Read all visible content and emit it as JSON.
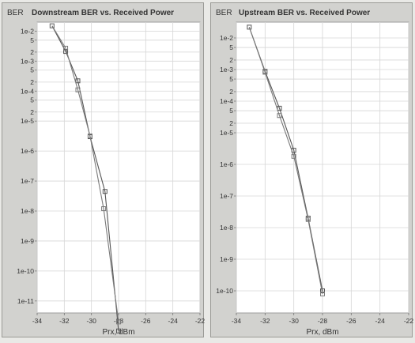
{
  "chart_data": [
    {
      "type": "line",
      "title": "Downstream BER vs. Received Power",
      "ylabel": "BER",
      "xlabel": "Prx, dBm",
      "xlim": [
        -34,
        -22
      ],
      "x_ticks": [
        -34,
        -32,
        -30,
        -28,
        -26,
        -24,
        -22
      ],
      "x_tick_labels": [
        "-34",
        "-32",
        "-30",
        "-28",
        "-26",
        "-24",
        "-22"
      ],
      "yscale": "log",
      "ylim_exp": [
        -11.4,
        -1.7
      ],
      "y_ticks": [
        {
          "label": "1e-2",
          "exp": -2
        },
        {
          "label": "5",
          "exp": -2.301
        },
        {
          "label": "2",
          "exp": -2.699
        },
        {
          "label": "1e-3",
          "exp": -3
        },
        {
          "label": "5",
          "exp": -3.301
        },
        {
          "label": "2",
          "exp": -3.699
        },
        {
          "label": "1e-4",
          "exp": -4
        },
        {
          "label": "5",
          "exp": -4.301
        },
        {
          "label": "2",
          "exp": -4.699
        },
        {
          "label": "1e-5",
          "exp": -5
        },
        {
          "label": "1e-6",
          "exp": -6
        },
        {
          "label": "1e-7",
          "exp": -7
        },
        {
          "label": "1e-8",
          "exp": -8
        },
        {
          "label": "1e-9",
          "exp": -9
        },
        {
          "label": "1e-10",
          "exp": -10
        },
        {
          "label": "1e-11",
          "exp": -11
        }
      ],
      "grid": true,
      "series": [
        {
          "x": [
            -32.9,
            -31.9,
            -31.0,
            -30.1,
            -29.0,
            -28.0
          ],
          "y": [
            0.015,
            0.0021,
            0.00022,
            3e-06,
            4.5e-08,
            1e-12
          ]
        },
        {
          "x": [
            -32.9,
            -31.9,
            -31.0,
            -30.1,
            -29.1,
            -28.0
          ],
          "y": [
            0.015,
            0.0027,
            0.00011,
            3.2e-06,
            1.2e-08,
            2e-12
          ]
        }
      ]
    },
    {
      "type": "line",
      "title": "Upstream BER vs. Received Power",
      "ylabel": "BER",
      "xlabel": "Prx, dBm",
      "xlim": [
        -34,
        -22
      ],
      "x_ticks": [
        -34,
        -32,
        -30,
        -28,
        -26,
        -24,
        -22
      ],
      "x_tick_labels": [
        "-34",
        "-32",
        "-30",
        "-28",
        "-26",
        "-24",
        "-22"
      ],
      "yscale": "log",
      "ylim_exp": [
        -10.7,
        -1.5
      ],
      "y_ticks": [
        {
          "label": "1e-2",
          "exp": -2
        },
        {
          "label": "5",
          "exp": -2.301
        },
        {
          "label": "2",
          "exp": -2.699
        },
        {
          "label": "1e-3",
          "exp": -3
        },
        {
          "label": "5",
          "exp": -3.301
        },
        {
          "label": "2",
          "exp": -3.699
        },
        {
          "label": "1e-4",
          "exp": -4
        },
        {
          "label": "5",
          "exp": -4.301
        },
        {
          "label": "2",
          "exp": -4.699
        },
        {
          "label": "1e-5",
          "exp": -5
        },
        {
          "label": "1e-6",
          "exp": -6
        },
        {
          "label": "1e-7",
          "exp": -7
        },
        {
          "label": "1e-8",
          "exp": -8
        },
        {
          "label": "1e-9",
          "exp": -9
        },
        {
          "label": "1e-10",
          "exp": -10
        }
      ],
      "grid": true,
      "series": [
        {
          "x": [
            -33.1,
            -32.0,
            -31.0,
            -30.0,
            -29.0,
            -28.0
          ],
          "y": [
            0.022,
            0.00088,
            6e-05,
            2.8e-06,
            2e-08,
            1e-10
          ]
        },
        {
          "x": [
            -33.1,
            -32.0,
            -31.0,
            -30.0,
            -29.0,
            -28.0
          ],
          "y": [
            0.022,
            0.00082,
            3.5e-05,
            1.8e-06,
            1.8e-08,
            8e-11
          ]
        }
      ]
    }
  ],
  "colors": {
    "panel": "#d2d2cf",
    "plot": "#ffffff",
    "grid": "#d6d6d6",
    "series": [
      "#555555",
      "#7a7a7a"
    ]
  }
}
